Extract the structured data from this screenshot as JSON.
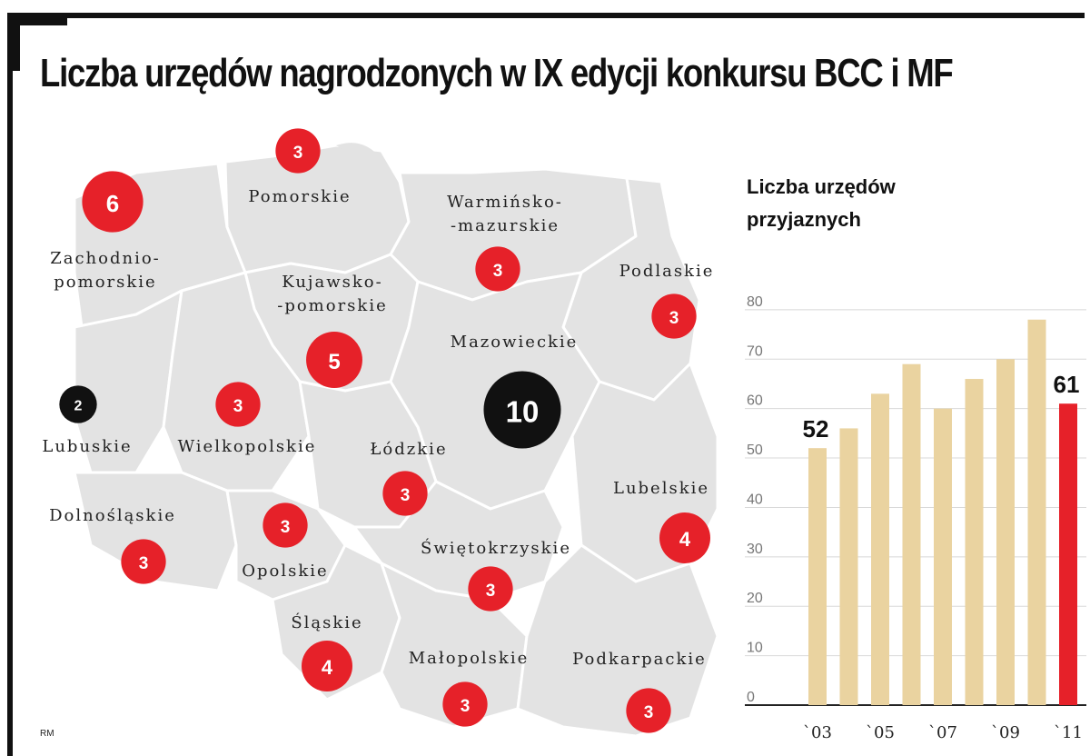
{
  "title": "Liczba urzędów nagrodzonych w IX edycji konkursu BCC i MF",
  "credit": "RM",
  "colors": {
    "red": "#e62129",
    "black": "#111111",
    "bar": "#ead3a0",
    "bar_highlight": "#e62129",
    "map_fill": "#e3e3e3",
    "map_border": "#ffffff"
  },
  "regions": [
    {
      "name": "Pomorskie",
      "value": 3,
      "label": "Pomorskie"
    },
    {
      "name": "Zachodniopomorskie",
      "value": 6,
      "label": "Zachodnio-\npomorskie"
    },
    {
      "name": "Warmińsko-mazurskie",
      "value": 3,
      "label": "Warmińsko-\n-mazurskie"
    },
    {
      "name": "Podlaskie",
      "value": 3,
      "label": "Podlaskie"
    },
    {
      "name": "Kujawsko-pomorskie",
      "value": 5,
      "label": "Kujawsko-\n-pomorskie"
    },
    {
      "name": "Mazowieckie",
      "value": 10,
      "label": "Mazowieckie"
    },
    {
      "name": "Lubuskie",
      "value": 2,
      "label": "Lubuskie"
    },
    {
      "name": "Wielkopolskie",
      "value": 3,
      "label": "Wielkopolskie"
    },
    {
      "name": "Łódzkie",
      "value": 3,
      "label": "Łódzkie"
    },
    {
      "name": "Lubelskie",
      "value": 4,
      "label": "Lubelskie"
    },
    {
      "name": "Dolnośląskie",
      "value": 3,
      "label": "Dolnośląskie"
    },
    {
      "name": "Opolskie",
      "value": 3,
      "label": "Opolskie"
    },
    {
      "name": "Świętokrzyskie",
      "value": 3,
      "label": "Świętokrzyskie"
    },
    {
      "name": "Śląskie",
      "value": 4,
      "label": "Śląskie"
    },
    {
      "name": "Małopolskie",
      "value": 3,
      "label": "Małopolskie"
    },
    {
      "name": "Podkarpackie",
      "value": 3,
      "label": "Podkarpackie"
    }
  ],
  "chart_data": {
    "type": "bar",
    "title": "Liczba urzędów przyjaznych",
    "title_lines": [
      "Liczba urzędów",
      "przyjaznych"
    ],
    "categories": [
      "2003",
      "2004",
      "2005",
      "2006",
      "2007",
      "2008",
      "2009",
      "2010",
      "2011"
    ],
    "values": [
      52,
      56,
      63,
      69,
      60,
      66,
      70,
      78,
      61
    ],
    "x_tick_labels": [
      "`03",
      "`05",
      "`07",
      "`09",
      "`11"
    ],
    "y_ticks": [
      0,
      10,
      20,
      30,
      40,
      50,
      60,
      70,
      80
    ],
    "ylim": [
      0,
      85
    ],
    "data_labels": [
      {
        "category": "2003",
        "text": "52"
      },
      {
        "category": "2011",
        "text": "61"
      }
    ],
    "highlight": "2011",
    "xlabel": "",
    "ylabel": "",
    "grid": true
  }
}
